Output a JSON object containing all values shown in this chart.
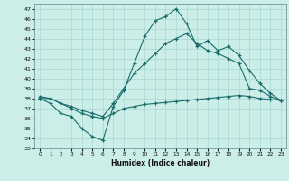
{
  "xlabel": "Humidex (Indice chaleur)",
  "background_color": "#cceee8",
  "line_color": "#1a6b6b",
  "grid_color": "#a8d8d0",
  "xlim": [
    -0.5,
    23.5
  ],
  "ylim": [
    33,
    47.5
  ],
  "yticks": [
    33,
    34,
    35,
    36,
    37,
    38,
    39,
    40,
    41,
    42,
    43,
    44,
    45,
    46,
    47
  ],
  "xticks": [
    0,
    1,
    2,
    3,
    4,
    5,
    6,
    7,
    8,
    9,
    10,
    11,
    12,
    13,
    14,
    15,
    16,
    17,
    18,
    19,
    20,
    21,
    22,
    23
  ],
  "line1_x": [
    0,
    1,
    2,
    3,
    4,
    5,
    6,
    7,
    8,
    9,
    10,
    11,
    12,
    13,
    14,
    15,
    16,
    17,
    18,
    19,
    20,
    21,
    22,
    23
  ],
  "line1_y": [
    38.0,
    38.0,
    37.5,
    37.0,
    36.5,
    36.2,
    36.0,
    36.5,
    37.0,
    37.2,
    37.4,
    37.5,
    37.6,
    37.7,
    37.8,
    37.9,
    38.0,
    38.1,
    38.2,
    38.3,
    38.2,
    38.0,
    37.9,
    37.8
  ],
  "line2_x": [
    0,
    1,
    2,
    3,
    4,
    5,
    6,
    7,
    8,
    9,
    10,
    11,
    12,
    13,
    14,
    15,
    16,
    17,
    18,
    19,
    20,
    21,
    22,
    23
  ],
  "line2_y": [
    38.0,
    37.5,
    36.5,
    36.2,
    35.0,
    34.2,
    33.8,
    37.2,
    38.8,
    41.5,
    44.2,
    45.8,
    46.2,
    47.0,
    45.5,
    43.2,
    43.8,
    42.8,
    43.2,
    42.3,
    40.8,
    39.5,
    38.5,
    37.8
  ],
  "line3_x": [
    0,
    1,
    2,
    3,
    4,
    5,
    6,
    7,
    8,
    9,
    10,
    11,
    12,
    13,
    14,
    15,
    16,
    17,
    18,
    19,
    20,
    21,
    22,
    23
  ],
  "line3_y": [
    38.2,
    38.0,
    37.5,
    37.2,
    36.8,
    36.5,
    36.2,
    37.5,
    39.0,
    40.5,
    41.5,
    42.5,
    43.5,
    44.0,
    44.5,
    43.5,
    42.8,
    42.5,
    42.0,
    41.5,
    39.0,
    38.8,
    38.2,
    37.8
  ]
}
